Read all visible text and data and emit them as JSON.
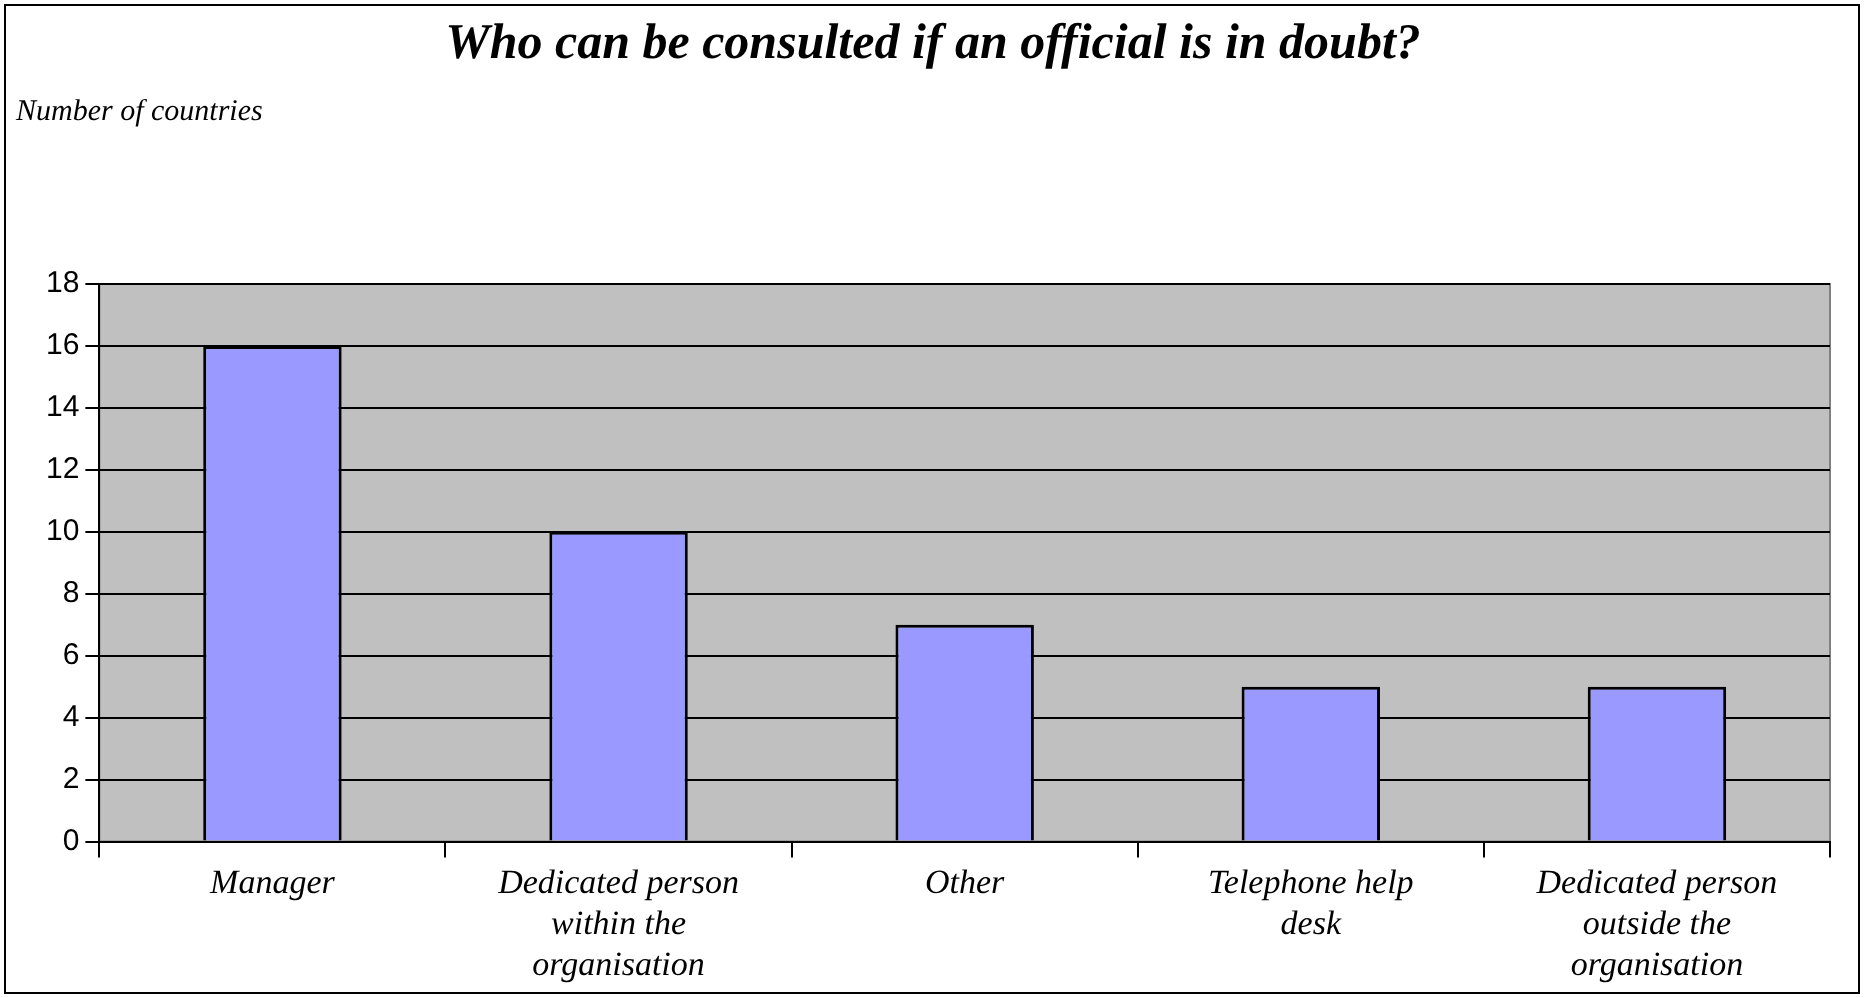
{
  "chart_data": {
    "type": "bar",
    "title": "Who can be consulted if an official is in doubt?",
    "ylabel": "Number of countries",
    "categories": [
      "Manager",
      "Dedicated person within the organisation",
      "Other",
      "Telephone help desk",
      "Dedicated person outside the organisation"
    ],
    "values": [
      16,
      10,
      7,
      5,
      5
    ],
    "color": "#9999ff",
    "ylim": [
      0,
      18
    ],
    "yticks": [
      0,
      2,
      4,
      6,
      8,
      10,
      12,
      14,
      16,
      18
    ],
    "grid": "y",
    "legend": false
  }
}
